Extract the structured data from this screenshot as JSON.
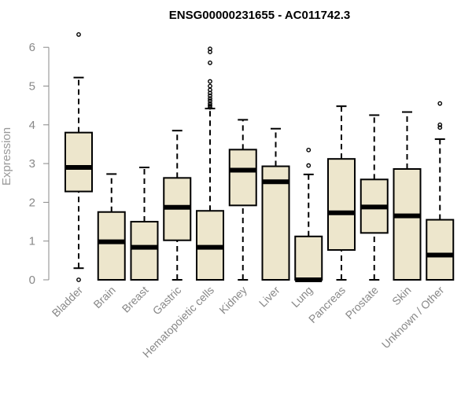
{
  "chart_data": {
    "type": "box",
    "title": "ENSG00000231655 - AC011742.3",
    "xlabel": "",
    "ylabel": "Expression",
    "ylim": [
      0,
      6.5
    ],
    "yticks": [
      0,
      1,
      2,
      3,
      4,
      5,
      6
    ],
    "grid": false,
    "legend": "none",
    "box_fill": "#ede6cc",
    "categories": [
      "Bladder",
      "Brain",
      "Breast",
      "Gastric",
      "Hematopoietic cells",
      "Kidney",
      "Liver",
      "Lung",
      "Pancreas",
      "Prostate",
      "Skin",
      "Unknown / Other"
    ],
    "boxes": [
      {
        "category": "Bladder",
        "whisker_low": 0.3,
        "q1": 2.28,
        "median": 2.9,
        "q3": 3.8,
        "whisker_high": 5.22,
        "outliers": [
          6.33,
          0.0
        ]
      },
      {
        "category": "Brain",
        "whisker_low": 0.0,
        "q1": 0.0,
        "median": 0.98,
        "q3": 1.75,
        "whisker_high": 2.73,
        "outliers": []
      },
      {
        "category": "Breast",
        "whisker_low": 0.0,
        "q1": 0.0,
        "median": 0.84,
        "q3": 1.5,
        "whisker_high": 2.9,
        "outliers": []
      },
      {
        "category": "Gastric",
        "whisker_low": 0.0,
        "q1": 1.02,
        "median": 1.87,
        "q3": 2.63,
        "whisker_high": 3.85,
        "outliers": []
      },
      {
        "category": "Hematopoietic cells",
        "whisker_low": 0.0,
        "q1": 0.0,
        "median": 0.84,
        "q3": 1.78,
        "whisker_high": 4.42,
        "outliers": [
          4.45,
          4.5,
          4.55,
          4.62,
          4.68,
          4.75,
          4.82,
          4.9,
          5.0,
          5.12,
          5.6,
          5.88,
          5.96
        ]
      },
      {
        "category": "Kidney",
        "whisker_low": 0.0,
        "q1": 1.92,
        "median": 2.83,
        "q3": 3.36,
        "whisker_high": 4.13,
        "outliers": []
      },
      {
        "category": "Liver",
        "whisker_low": 0.0,
        "q1": 0.0,
        "median": 2.53,
        "q3": 2.93,
        "whisker_high": 3.9,
        "outliers": []
      },
      {
        "category": "Lung",
        "whisker_low": 0.0,
        "q1": 0.0,
        "median": 0.0,
        "q3": 1.12,
        "whisker_high": 2.72,
        "outliers": [
          2.95,
          3.35
        ]
      },
      {
        "category": "Pancreas",
        "whisker_low": 0.0,
        "q1": 0.77,
        "median": 1.73,
        "q3": 3.12,
        "whisker_high": 4.48,
        "outliers": []
      },
      {
        "category": "Prostate",
        "whisker_low": 0.0,
        "q1": 1.21,
        "median": 1.88,
        "q3": 2.59,
        "whisker_high": 4.25,
        "outliers": []
      },
      {
        "category": "Skin",
        "whisker_low": 0.0,
        "q1": 0.0,
        "median": 1.65,
        "q3": 2.86,
        "whisker_high": 4.33,
        "outliers": []
      },
      {
        "category": "Unknown / Other",
        "whisker_low": 0.0,
        "q1": 0.0,
        "median": 0.64,
        "q3": 1.55,
        "whisker_high": 3.63,
        "outliers": [
          3.93,
          4.0,
          4.55
        ]
      }
    ]
  }
}
